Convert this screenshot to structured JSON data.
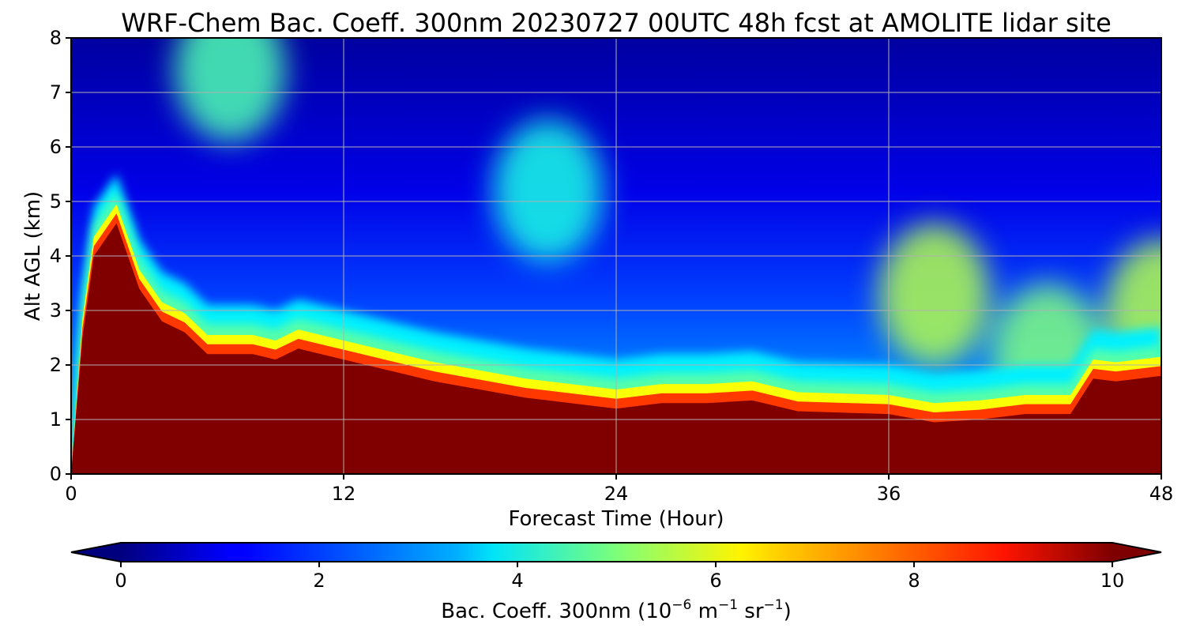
{
  "chart_data": {
    "type": "heatmap",
    "title": "WRF-Chem Bac. Coeff. 300nm  20230727 00UTC 48h fcst at AMOLITE lidar site",
    "xlabel": "Forecast Time (Hour)",
    "ylabel": "Alt AGL (km)",
    "xlim": [
      0,
      48
    ],
    "ylim": [
      0,
      8
    ],
    "xticks": [
      0,
      12,
      24,
      36,
      48
    ],
    "yticks": [
      0,
      1,
      2,
      3,
      4,
      5,
      6,
      7,
      8
    ],
    "grid": true,
    "colormap": "jet",
    "colorbar": {
      "label_main": "Bac. Coeff. 300nm  (10",
      "label_exp1": "−6",
      "label_unit": " m",
      "label_exp2": "−1",
      "label_unit2": " sr",
      "label_exp3": "−1",
      "label_close": ")",
      "range": [
        0,
        10
      ],
      "ticks": [
        0,
        2,
        4,
        6,
        8,
        10
      ],
      "extend": "both",
      "orientation": "horizontal"
    },
    "boundary_layer_top_km": {
      "x": [
        0,
        0.5,
        1,
        2,
        3,
        4,
        5,
        6,
        8,
        9,
        10,
        12,
        14,
        16,
        20,
        24,
        26,
        28,
        30,
        32,
        36,
        38,
        40,
        42,
        44,
        45,
        46,
        48
      ],
      "y": [
        0,
        2.5,
        4.0,
        4.6,
        3.4,
        2.8,
        2.6,
        2.2,
        2.2,
        2.1,
        2.3,
        2.1,
        1.9,
        1.7,
        1.4,
        1.2,
        1.3,
        1.3,
        1.35,
        1.15,
        1.1,
        0.95,
        1.0,
        1.1,
        1.1,
        1.75,
        1.7,
        1.8
      ]
    },
    "upper_layer_features": [
      {
        "x": 7,
        "y": 7.4,
        "value": 4.5
      },
      {
        "x": 21,
        "y": 5.2,
        "value": 4.0
      },
      {
        "x": 38,
        "y": 3.3,
        "value": 5.5
      },
      {
        "x": 48,
        "y": 3.0,
        "value": 5.5
      },
      {
        "x": 43,
        "y": 2.2,
        "value": 5.0
      }
    ]
  }
}
